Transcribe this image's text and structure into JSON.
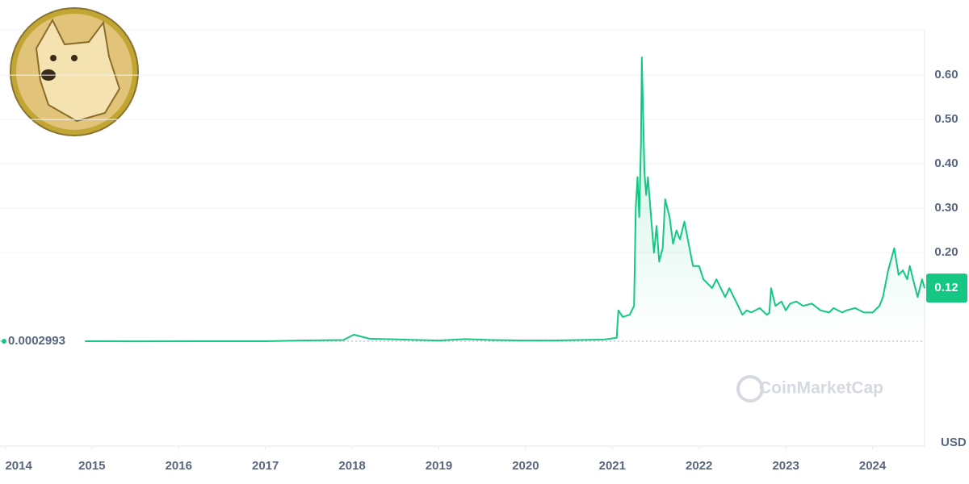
{
  "chart_data": {
    "type": "line",
    "watermark": "CoinMarketCap",
    "currency": "USD",
    "reference_line": 0.0002993,
    "last_price": 0.12,
    "xlim": [
      2013.94,
      2024.6
    ],
    "xticks": [
      2014,
      2015,
      2016,
      2017,
      2018,
      2019,
      2020,
      2021,
      2022,
      2023,
      2024
    ],
    "ylim": [
      -0.236,
      0.702
    ],
    "yticks": [
      {
        "value": 0.2,
        "label": "0.20"
      },
      {
        "value": 0.3,
        "label": "0.30"
      },
      {
        "value": 0.4,
        "label": "0.40"
      },
      {
        "value": 0.5,
        "label": "0.50"
      },
      {
        "value": 0.6,
        "label": "0.60"
      }
    ],
    "grid": true,
    "series": [
      {
        "color": "#16c784",
        "x": [
          2014.92,
          2015.5,
          2016.5,
          2017.0,
          2017.4,
          2017.9,
          2018.02,
          2018.2,
          2018.6,
          2019.0,
          2019.3,
          2019.6,
          2020.0,
          2020.3,
          2020.6,
          2020.9,
          2021.05,
          2021.07,
          2021.12,
          2021.2,
          2021.25,
          2021.27,
          2021.29,
          2021.31,
          2021.33,
          2021.34,
          2021.37,
          2021.39,
          2021.41,
          2021.45,
          2021.48,
          2021.51,
          2021.54,
          2021.58,
          2021.61,
          2021.66,
          2021.7,
          2021.74,
          2021.78,
          2021.83,
          2021.88,
          2021.93,
          2022.0,
          2022.05,
          2022.1,
          2022.15,
          2022.2,
          2022.25,
          2022.3,
          2022.35,
          2022.45,
          2022.5,
          2022.55,
          2022.6,
          2022.7,
          2022.78,
          2022.81,
          2022.83,
          2022.88,
          2022.95,
          2023.0,
          2023.05,
          2023.12,
          2023.2,
          2023.3,
          2023.4,
          2023.5,
          2023.55,
          2023.65,
          2023.7,
          2023.8,
          2023.9,
          2024.0,
          2024.08,
          2024.12,
          2024.18,
          2024.25,
          2024.3,
          2024.35,
          2024.4,
          2024.43,
          2024.48,
          2024.52,
          2024.57,
          2024.6
        ],
        "values": [
          0.0003,
          0.0002,
          0.0003,
          0.0003,
          0.002,
          0.003,
          0.015,
          0.006,
          0.004,
          0.002,
          0.005,
          0.003,
          0.002,
          0.002,
          0.003,
          0.004,
          0.008,
          0.07,
          0.055,
          0.06,
          0.08,
          0.3,
          0.37,
          0.28,
          0.45,
          0.64,
          0.38,
          0.33,
          0.37,
          0.27,
          0.2,
          0.26,
          0.18,
          0.21,
          0.32,
          0.28,
          0.22,
          0.25,
          0.23,
          0.27,
          0.22,
          0.17,
          0.17,
          0.14,
          0.13,
          0.12,
          0.14,
          0.12,
          0.1,
          0.12,
          0.08,
          0.06,
          0.07,
          0.065,
          0.075,
          0.06,
          0.064,
          0.12,
          0.08,
          0.09,
          0.07,
          0.085,
          0.09,
          0.08,
          0.085,
          0.07,
          0.065,
          0.075,
          0.065,
          0.07,
          0.075,
          0.065,
          0.065,
          0.08,
          0.1,
          0.16,
          0.21,
          0.15,
          0.16,
          0.14,
          0.17,
          0.13,
          0.1,
          0.14,
          0.12
        ]
      }
    ]
  }
}
